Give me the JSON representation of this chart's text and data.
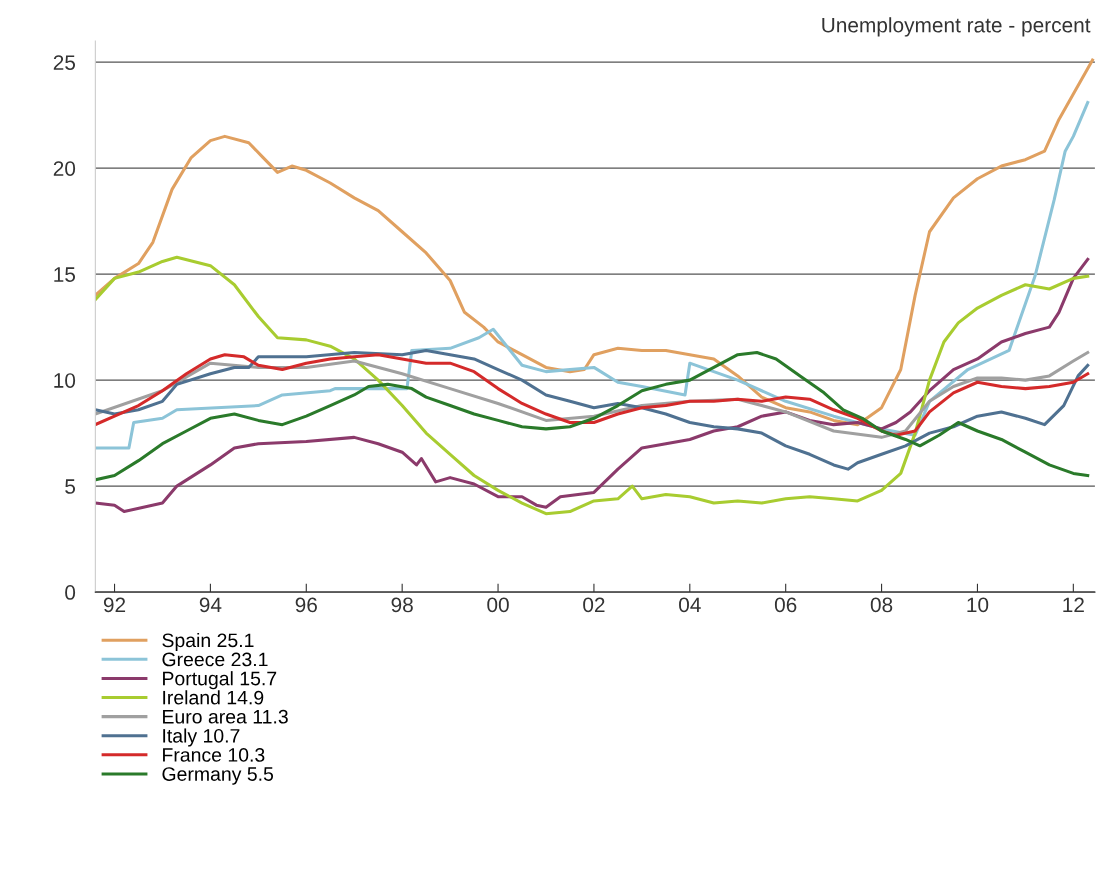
{
  "chart_data": {
    "type": "line",
    "title": "Unemployment rate - percent",
    "xlim": [
      1991.6,
      2012.45
    ],
    "ylim": [
      0,
      26
    ],
    "xticks": [
      {
        "value": 1992,
        "label": "92"
      },
      {
        "value": 1994,
        "label": "94"
      },
      {
        "value": 1996,
        "label": "96"
      },
      {
        "value": 1998,
        "label": "98"
      },
      {
        "value": 2000,
        "label": "00"
      },
      {
        "value": 2002,
        "label": "02"
      },
      {
        "value": 2004,
        "label": "04"
      },
      {
        "value": 2006,
        "label": "06"
      },
      {
        "value": 2008,
        "label": "08"
      },
      {
        "value": 2010,
        "label": "10"
      },
      {
        "value": 2012,
        "label": "12"
      }
    ],
    "yticks": [
      0,
      5,
      10,
      15,
      20,
      25
    ],
    "grid": "y",
    "legend": "bottom left",
    "marker": "none",
    "line_style": "solid",
    "series": [
      {
        "name": "Spain 25.1",
        "color": "#e0a060",
        "x": [
          1991.6,
          1992.0,
          1992.5,
          1992.8,
          1993.2,
          1993.6,
          1994.0,
          1994.3,
          1994.8,
          1995.1,
          1995.4,
          1995.7,
          1996.0,
          1996.5,
          1997.0,
          1997.5,
          1998.0,
          1998.5,
          1999.0,
          1999.3,
          1999.7,
          2000.0,
          2000.5,
          2001.0,
          2001.5,
          2001.8,
          2002.0,
          2002.5,
          2003.0,
          2003.5,
          2004.0,
          2004.5,
          2005.0,
          2005.5,
          2006.0,
          2006.5,
          2007.0,
          2007.5,
          2008.0,
          2008.4,
          2008.7,
          2009.0,
          2009.5,
          2010.0,
          2010.5,
          2011.0,
          2011.4,
          2011.7,
          2012.0,
          2012.4
        ],
        "values": [
          14.0,
          14.8,
          15.5,
          16.5,
          19.0,
          20.5,
          21.3,
          21.5,
          21.2,
          20.5,
          19.8,
          20.1,
          19.9,
          19.3,
          18.6,
          18.0,
          17.0,
          16.0,
          14.7,
          13.2,
          12.5,
          11.8,
          11.2,
          10.6,
          10.4,
          10.5,
          11.2,
          11.5,
          11.4,
          11.4,
          11.2,
          11.0,
          10.2,
          9.2,
          8.7,
          8.5,
          8.1,
          7.9,
          8.7,
          10.5,
          14.0,
          17.0,
          18.6,
          19.5,
          20.1,
          20.4,
          20.8,
          22.3,
          23.5,
          25.1
        ]
      },
      {
        "name": "Greece 23.1",
        "color": "#8cc4d8",
        "x": [
          1991.6,
          1992.3,
          1992.4,
          1993.0,
          1993.3,
          1995.0,
          1995.5,
          1996.5,
          1996.6,
          1998.1,
          1998.2,
          1999.0,
          1999.6,
          1999.9,
          2000.5,
          2001.0,
          2002.0,
          2002.5,
          2003.0,
          2003.9,
          2004.0,
          2005.0,
          2006.0,
          2007.0,
          2008.0,
          2008.7,
          2009.0,
          2009.8,
          2010.66,
          2011.2,
          2011.6,
          2011.83,
          2012.0,
          2012.3
        ],
        "values": [
          6.8,
          6.8,
          8.0,
          8.2,
          8.6,
          8.8,
          9.3,
          9.5,
          9.6,
          9.6,
          11.4,
          11.5,
          12.0,
          12.4,
          10.7,
          10.4,
          10.6,
          9.9,
          9.7,
          9.3,
          10.8,
          10.0,
          9.0,
          8.3,
          7.7,
          7.4,
          9.0,
          10.5,
          11.4,
          14.9,
          18.5,
          20.8,
          21.5,
          23.1
        ]
      },
      {
        "name": "Portugal 15.7",
        "color": "#8b3a6b",
        "x": [
          1991.6,
          1992.0,
          1992.2,
          1993.0,
          1993.3,
          1994.0,
          1994.5,
          1995.0,
          1996.0,
          1997.0,
          1997.5,
          1998.0,
          1998.3,
          1998.4,
          1998.7,
          1999.0,
          1999.5,
          2000.0,
          2000.5,
          2000.8,
          2001.0,
          2001.3,
          2002.0,
          2002.5,
          2003.0,
          2003.5,
          2004.0,
          2004.5,
          2005.0,
          2005.5,
          2006.0,
          2006.5,
          2007.0,
          2007.5,
          2008.0,
          2008.3,
          2008.6,
          2009.0,
          2009.5,
          2010.0,
          2010.5,
          2011.0,
          2011.5,
          2011.7,
          2012.0,
          2012.3
        ],
        "values": [
          4.2,
          4.1,
          3.8,
          4.2,
          5.0,
          6.0,
          6.8,
          7.0,
          7.1,
          7.3,
          7.0,
          6.6,
          6.0,
          6.3,
          5.2,
          5.4,
          5.1,
          4.5,
          4.5,
          4.1,
          4.0,
          4.5,
          4.7,
          5.8,
          6.8,
          7.0,
          7.2,
          7.6,
          7.8,
          8.3,
          8.5,
          8.1,
          7.9,
          8.0,
          7.7,
          8.0,
          8.5,
          9.5,
          10.5,
          11.0,
          11.8,
          12.2,
          12.5,
          13.2,
          14.8,
          15.7
        ]
      },
      {
        "name": "Ireland 14.9",
        "color": "#a8cc30",
        "x": [
          1991.6,
          1992.0,
          1992.5,
          1993.0,
          1993.3,
          1994.0,
          1994.5,
          1995.0,
          1995.4,
          1996.0,
          1996.5,
          1997.0,
          1997.5,
          1998.0,
          1998.5,
          1999.0,
          1999.5,
          2000.0,
          2000.5,
          2001.0,
          2001.5,
          2002.0,
          2002.5,
          2002.8,
          2003.0,
          2003.5,
          2004.0,
          2004.5,
          2005.0,
          2005.5,
          2006.0,
          2006.5,
          2007.0,
          2007.5,
          2008.0,
          2008.4,
          2008.7,
          2009.0,
          2009.3,
          2009.6,
          2010.0,
          2010.5,
          2011.0,
          2011.5,
          2012.0,
          2012.3
        ],
        "values": [
          13.8,
          14.8,
          15.1,
          15.6,
          15.8,
          15.4,
          14.5,
          13.0,
          12.0,
          11.9,
          11.6,
          11.0,
          10.0,
          8.8,
          7.5,
          6.5,
          5.5,
          4.8,
          4.2,
          3.7,
          3.8,
          4.3,
          4.4,
          5.0,
          4.4,
          4.6,
          4.5,
          4.2,
          4.3,
          4.2,
          4.4,
          4.5,
          4.4,
          4.3,
          4.8,
          5.6,
          7.5,
          10.0,
          11.8,
          12.7,
          13.4,
          14.0,
          14.5,
          14.3,
          14.8,
          14.9
        ]
      },
      {
        "name": "Euro area 11.3",
        "color": "#a0a0a0",
        "x": [
          1991.6,
          1993.0,
          1994.0,
          1995.0,
          1996.0,
          1997.0,
          1998.0,
          1999.0,
          2000.0,
          2001.0,
          2002.0,
          2003.0,
          2004.0,
          2005.0,
          2006.0,
          2007.0,
          2008.0,
          2008.5,
          2009.0,
          2009.5,
          2010.0,
          2010.5,
          2011.0,
          2011.5,
          2012.0,
          2012.3
        ],
        "values": [
          8.4,
          9.5,
          10.8,
          10.6,
          10.6,
          10.9,
          10.3,
          9.6,
          8.9,
          8.1,
          8.3,
          8.8,
          9.0,
          9.1,
          8.5,
          7.6,
          7.3,
          7.6,
          9.0,
          9.7,
          10.1,
          10.1,
          10.0,
          10.2,
          10.9,
          11.3
        ]
      },
      {
        "name": "Italy 10.7",
        "color": "#4f7191",
        "x": [
          1991.6,
          1992.0,
          1992.5,
          1993.0,
          1993.3,
          1994.0,
          1994.5,
          1994.8,
          1995.0,
          1996.0,
          1997.0,
          1998.0,
          1998.5,
          1999.0,
          1999.5,
          2000.0,
          2000.5,
          2001.0,
          2001.5,
          2002.0,
          2002.5,
          2003.0,
          2003.5,
          2004.0,
          2004.5,
          2005.0,
          2005.5,
          2006.0,
          2006.5,
          2007.0,
          2007.3,
          2007.5,
          2008.0,
          2008.5,
          2009.0,
          2009.5,
          2010.0,
          2010.5,
          2011.0,
          2011.4,
          2011.8,
          2012.1,
          2012.3
        ],
        "values": [
          8.6,
          8.4,
          8.6,
          9.0,
          9.8,
          10.3,
          10.6,
          10.6,
          11.1,
          11.1,
          11.3,
          11.2,
          11.4,
          11.2,
          11.0,
          10.5,
          10.0,
          9.3,
          9.0,
          8.7,
          8.9,
          8.7,
          8.4,
          8.0,
          7.8,
          7.7,
          7.5,
          6.9,
          6.5,
          6.0,
          5.8,
          6.1,
          6.5,
          6.9,
          7.5,
          7.8,
          8.3,
          8.5,
          8.2,
          7.9,
          8.8,
          10.2,
          10.7
        ]
      },
      {
        "name": "France 10.3",
        "color": "#d42a2a",
        "x": [
          1991.6,
          1992.0,
          1992.5,
          1993.0,
          1993.5,
          1994.0,
          1994.3,
          1994.7,
          1995.0,
          1995.5,
          1996.0,
          1996.5,
          1997.0,
          1997.5,
          1998.0,
          1998.5,
          1999.0,
          1999.5,
          2000.0,
          2000.5,
          2001.0,
          2001.5,
          2002.0,
          2002.5,
          2003.0,
          2003.5,
          2004.0,
          2004.5,
          2005.0,
          2005.5,
          2006.0,
          2006.5,
          2007.0,
          2007.5,
          2008.0,
          2008.3,
          2008.7,
          2009.0,
          2009.5,
          2010.0,
          2010.5,
          2011.0,
          2011.5,
          2012.0,
          2012.3
        ],
        "values": [
          7.9,
          8.3,
          8.8,
          9.5,
          10.3,
          11.0,
          11.2,
          11.1,
          10.7,
          10.5,
          10.8,
          11.0,
          11.1,
          11.2,
          11.0,
          10.8,
          10.8,
          10.4,
          9.6,
          8.9,
          8.4,
          8.0,
          8.0,
          8.4,
          8.7,
          8.8,
          9.0,
          9.0,
          9.1,
          9.0,
          9.2,
          9.1,
          8.6,
          8.2,
          7.6,
          7.4,
          7.6,
          8.5,
          9.4,
          9.9,
          9.7,
          9.6,
          9.7,
          9.9,
          10.3
        ]
      },
      {
        "name": "Germany 5.5",
        "color": "#2a7a2a",
        "x": [
          1991.6,
          1992.0,
          1992.5,
          1993.0,
          1993.5,
          1994.0,
          1994.5,
          1995.0,
          1995.5,
          1996.0,
          1996.5,
          1997.0,
          1997.3,
          1997.7,
          1998.2,
          1998.5,
          1999.0,
          1999.5,
          2000.0,
          2000.5,
          2001.0,
          2001.5,
          2002.0,
          2002.5,
          2003.0,
          2003.5,
          2004.0,
          2004.5,
          2005.0,
          2005.4,
          2005.8,
          2006.3,
          2006.8,
          2007.2,
          2007.6,
          2008.0,
          2008.5,
          2008.8,
          2009.2,
          2009.6,
          2010.0,
          2010.5,
          2011.0,
          2011.5,
          2012.0,
          2012.3
        ],
        "values": [
          5.3,
          5.5,
          6.2,
          7.0,
          7.6,
          8.2,
          8.4,
          8.1,
          7.9,
          8.3,
          8.8,
          9.3,
          9.7,
          9.8,
          9.6,
          9.2,
          8.8,
          8.4,
          8.1,
          7.8,
          7.7,
          7.8,
          8.2,
          8.8,
          9.5,
          9.8,
          10.0,
          10.6,
          11.2,
          11.3,
          11.0,
          10.2,
          9.4,
          8.6,
          8.2,
          7.6,
          7.2,
          6.9,
          7.4,
          8.0,
          7.6,
          7.2,
          6.6,
          6.0,
          5.6,
          5.5
        ]
      }
    ]
  }
}
